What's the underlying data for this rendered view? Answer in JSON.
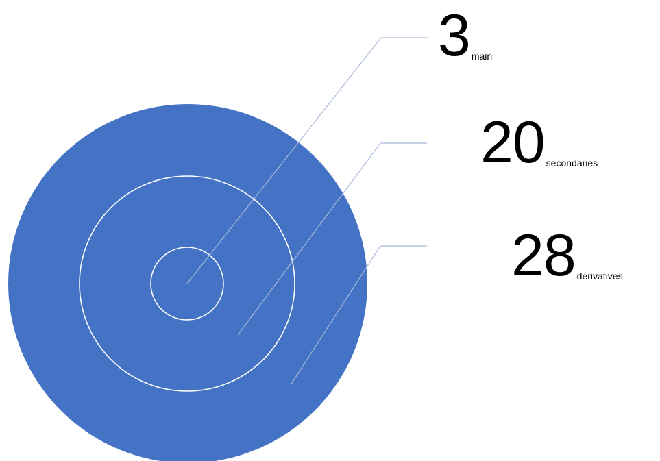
{
  "diagram": {
    "type": "concentric-circles",
    "fill_color": "#4472C4",
    "ring_stroke_color": "#FFFFFF",
    "leader_line_color": "#AAB9DD",
    "levels": [
      {
        "value": "3",
        "label": "main"
      },
      {
        "value": "20",
        "label": "secondaries"
      },
      {
        "value": "28",
        "label": "derivatives"
      }
    ]
  }
}
